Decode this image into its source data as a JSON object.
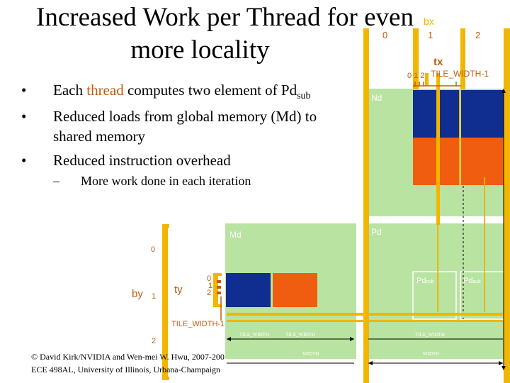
{
  "slide": {
    "title_line1": "Increased Work per Thread for even",
    "title_line2": "more locality",
    "bullets": [
      {
        "pre": "Each ",
        "hl": "thread",
        "post": " computes two element of Pd",
        "sub": "sub"
      },
      {
        "text_line1": "Reduced loads from global memory (Md) to",
        "text_line2": "shared memory"
      },
      {
        "text": "Reduced instruction overhead"
      }
    ],
    "sub_bullet": "More work done in each iteration",
    "bullet_symbol": "•",
    "dash_symbol": "–",
    "footer_line1": "© David Kirk/NVIDIA and Wen-mei W. Hwu, 2007-200",
    "footer_line2": "ECE 498AL, University of Illinois, Urbana-Champaign"
  },
  "diagram": {
    "bx_label": "bx",
    "bx_ticks": [
      "0",
      "1",
      "2"
    ],
    "tx_label": "tx",
    "tx_ticks": "0 1 2",
    "tile_width_1_top": "TILE_WIDTH-1",
    "nd_label": "Nd",
    "md_label": "Md",
    "pd_label": "Pd",
    "by_label": "by",
    "by_ticks": [
      "0",
      "1",
      "2"
    ],
    "ty_label": "ty",
    "ty_ticks": [
      "0",
      "1",
      "2"
    ],
    "tile_width_1_left": "TILE_WIDTH-1",
    "pdsub_left": {
      "main": "Pd",
      "sub": "sub"
    },
    "pdsub_right": {
      "main": "Pd",
      "sub": "sub"
    },
    "tile_width_small_1": "TILE_WIDTH",
    "tile_width_small_2": "TILE_WIDTH",
    "tile_width_small_3": "TILE_WIDTH",
    "width_small_1": "WIDTH",
    "width_small_2": "WIDTH",
    "colors": {
      "green": "#b9e3a1",
      "blue": "#0f2e8f",
      "orange": "#f05d10",
      "yellow": "#f2b500",
      "text_orange": "#c35b0d"
    }
  }
}
